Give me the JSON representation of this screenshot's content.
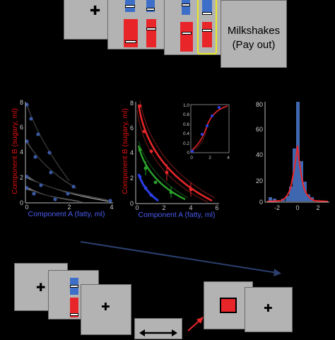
{
  "top": {
    "fixation": "✚",
    "outcome_line1": "Milkshakes",
    "outcome_line2": "(Pay out)"
  },
  "panels": {
    "left": {
      "xlabel": "Component A (fatty, ml)",
      "ylabel": "Component B (sugary, ml)",
      "xticks": [
        "0",
        "2",
        "4"
      ],
      "yticks": [
        "0",
        "2",
        "4",
        "6",
        "8"
      ]
    },
    "middle": {
      "xlabel": "Component A (fatty, ml)",
      "ylabel": "Component B (sugary, ml)",
      "xticks": [
        "0",
        "2",
        "4",
        "6"
      ],
      "yticks": [
        "0",
        "2",
        "4",
        "6",
        "8"
      ],
      "inset_xticks": [
        "0",
        "2",
        "4"
      ],
      "inset_yticks": [
        "0",
        "0.2",
        "0.4",
        "0.6",
        "0.8",
        "1.0"
      ]
    },
    "right": {
      "xticks": [
        "-2",
        "0",
        "2"
      ],
      "yticks": [
        "0",
        "20",
        "40",
        "60",
        "80"
      ]
    }
  },
  "bottom": {
    "fixation": "✚"
  },
  "colors": {
    "screen": "#b3b3b3",
    "blue": "#3d6fc8",
    "red": "#e8262a",
    "green": "#2aa02a",
    "highlight": "#e8e822",
    "axis_blue": "#4a5cf0",
    "axis_red": "#e01010"
  }
}
